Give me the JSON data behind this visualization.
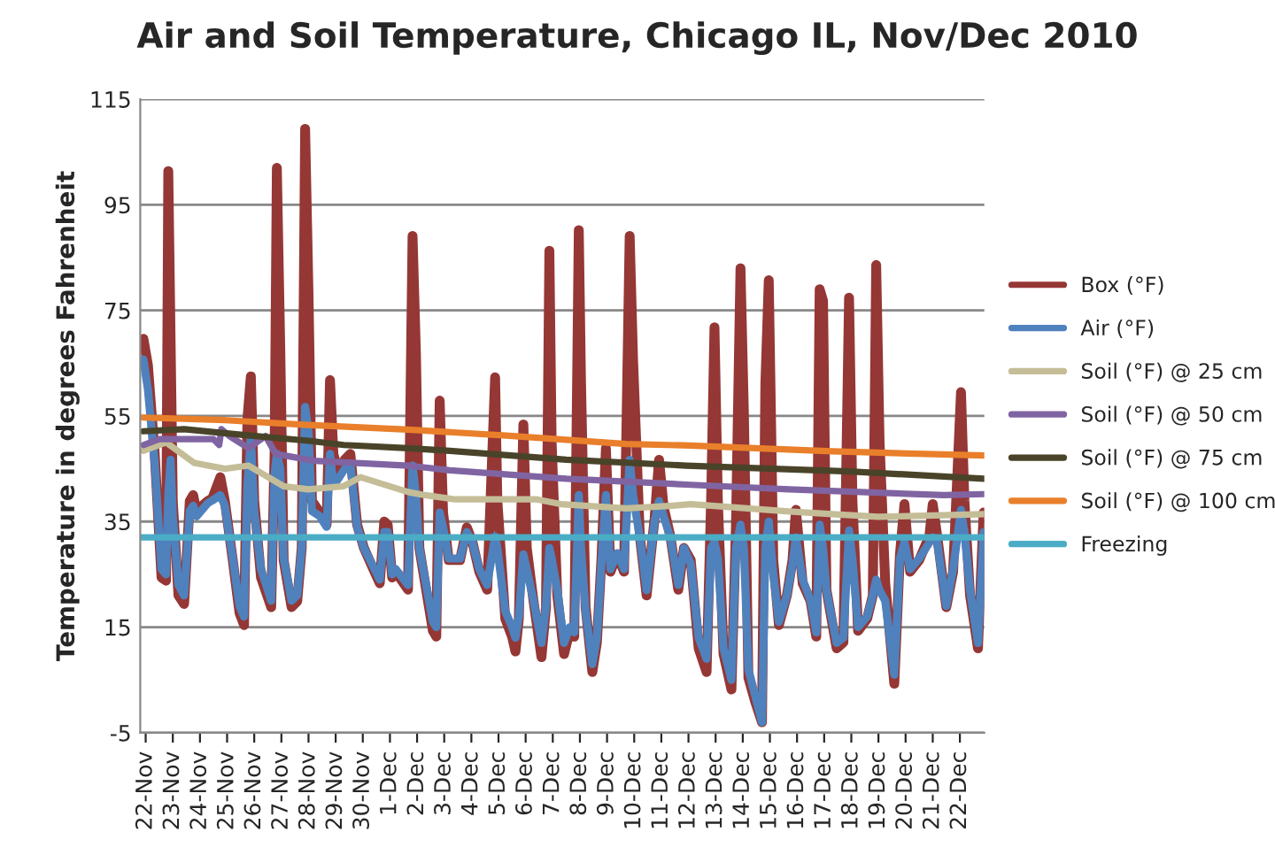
{
  "chart_data": {
    "type": "line",
    "title": "Air and Soil Temperature, Chicago IL, Nov/Dec 2010",
    "ylabel": "Temperature in degrees Fahrenheit",
    "x": [
      "2010-11-21T22:00",
      "2010-11-22T02:00",
      "2010-11-22T08:00",
      "2010-11-22T14:00",
      "2010-11-22T18:00",
      "2010-11-22T20:00",
      "2010-11-22T22:00",
      "2010-11-23T00:00",
      "2010-11-23T05:00",
      "2010-11-23T10:00",
      "2010-11-23T15:00",
      "2010-11-23T18:00",
      "2010-11-23T21:00",
      "2010-11-24T01:00",
      "2010-11-24T07:00",
      "2010-11-24T11:00",
      "2010-11-24T18:00",
      "2010-11-24T22:00",
      "2010-11-25T05:00",
      "2010-11-25T11:00",
      "2010-11-25T15:00",
      "2010-11-25T18:00",
      "2010-11-25T21:00",
      "2010-11-26T00:00",
      "2010-11-26T06:00",
      "2010-11-26T15:00",
      "2010-11-26T18:00",
      "2010-11-26T20:00",
      "2010-11-26T23:00",
      "2010-11-27T02:00",
      "2010-11-27T09:00",
      "2010-11-27T14:00",
      "2010-11-27T18:00",
      "2010-11-27T21:00",
      "2010-11-28T00:00",
      "2010-11-28T03:00",
      "2010-11-28T10:00",
      "2010-11-28T16:00",
      "2010-11-28T19:00",
      "2010-11-28T22:00",
      "2010-11-29T02:00",
      "2010-11-29T08:00",
      "2010-11-29T13:00",
      "2010-11-29T19:00",
      "2010-11-30T01:00",
      "2010-11-30T08:00",
      "2010-11-30T15:00",
      "2010-11-30T19:00",
      "2010-11-30T22:00",
      "2010-12-01T02:00",
      "2010-12-01T05:00",
      "2010-12-01T16:00",
      "2010-12-01T20:00",
      "2010-12-01T23:00",
      "2010-12-02T02:00",
      "2010-12-02T08:00",
      "2010-12-02T14:00",
      "2010-12-02T17:00",
      "2010-12-02T20:00",
      "2010-12-02T23:00",
      "2010-12-03T04:00",
      "2010-12-03T14:00",
      "2010-12-03T20:00",
      "2010-12-04T01:00",
      "2010-12-04T07:00",
      "2010-12-04T14:00",
      "2010-12-04T21:00",
      "2010-12-04T23:00",
      "2010-12-05T06:00",
      "2010-12-05T12:00",
      "2010-12-05T15:00",
      "2010-12-05T18:00",
      "2010-12-05T22:00",
      "2010-12-06T01:00",
      "2010-12-06T07:00",
      "2010-12-06T14:00",
      "2010-12-06T18:00",
      "2010-12-06T21:00",
      "2010-12-06T23:00",
      "2010-12-07T04:00",
      "2010-12-07T10:00",
      "2010-12-07T15:00",
      "2010-12-07T19:00",
      "2010-12-07T23:00",
      "2010-12-08T01:00",
      "2010-12-08T05:00",
      "2010-12-08T11:00",
      "2010-12-08T15:00",
      "2010-12-08T19:00",
      "2010-12-08T23:00",
      "2010-12-09T03:00",
      "2010-12-09T09:00",
      "2010-12-09T15:00",
      "2010-12-09T20:00",
      "2010-12-09T23:00",
      "2010-12-10T05:00",
      "2010-12-10T11:00",
      "2010-12-10T18:00",
      "2010-12-10T22:00",
      "2010-12-11T02:00",
      "2010-12-11T08:00",
      "2010-12-11T15:00",
      "2010-12-11T20:00",
      "2010-12-12T02:00",
      "2010-12-12T09:00",
      "2010-12-12T16:00",
      "2010-12-12T20:00",
      "2010-12-12T23:00",
      "2010-12-13T02:00",
      "2010-12-13T07:00",
      "2010-12-13T14:00",
      "2010-12-13T18:00",
      "2010-12-13T22:00",
      "2010-12-14T01:00",
      "2010-12-14T05:00",
      "2010-12-14T11:00",
      "2010-12-14T17:00",
      "2010-12-14T20:00",
      "2010-12-14T23:00",
      "2010-12-15T03:00",
      "2010-12-15T08:00",
      "2010-12-15T15:00",
      "2010-12-15T20:00",
      "2010-12-15T23:00",
      "2010-12-16T05:00",
      "2010-12-16T12:00",
      "2010-12-16T17:00",
      "2010-12-16T20:00",
      "2010-12-16T23:00",
      "2010-12-17T02:00",
      "2010-12-17T11:00",
      "2010-12-17T17:00",
      "2010-12-17T22:00",
      "2010-12-18T01:00",
      "2010-12-18T06:00",
      "2010-12-18T14:00",
      "2010-12-18T19:00",
      "2010-12-18T22:00",
      "2010-12-19T01:00",
      "2010-12-19T06:00",
      "2010-12-19T14:00",
      "2010-12-19T19:00",
      "2010-12-19T23:00",
      "2010-12-20T04:00",
      "2010-12-20T12:00",
      "2010-12-20T21:00",
      "2010-12-21T00:00",
      "2010-12-21T04:00",
      "2010-12-21T12:00",
      "2010-12-21T18:00",
      "2010-12-22T01:00",
      "2010-12-22T04:00",
      "2010-12-22T09:00",
      "2010-12-22T16:00",
      "2010-12-22T21:00"
    ],
    "series": [
      {
        "name": "Box (°F)",
        "color": "#953735",
        "values": [
          69.6,
          64.6,
          47.8,
          24.4,
          23.8,
          101.4,
          70,
          38.7,
          21,
          19.4,
          38.9,
          40,
          36.7,
          37.8,
          38.9,
          39.4,
          43.4,
          38.9,
          27.7,
          17.7,
          15.4,
          54.5,
          62.5,
          38.9,
          24.4,
          18.8,
          47.8,
          102,
          68,
          27.7,
          18.8,
          19.9,
          30,
          109.4,
          78,
          38.9,
          36.7,
          34.4,
          61.8,
          47.8,
          44.5,
          46.7,
          47.8,
          34.4,
          30,
          26.6,
          23.3,
          35,
          34.4,
          24.4,
          25.5,
          22.1,
          89.1,
          66.8,
          30,
          22.1,
          14.3,
          13.2,
          57.9,
          36.7,
          27.7,
          27.7,
          33.9,
          31.1,
          25.5,
          22.1,
          62.3,
          38.9,
          16.6,
          13.2,
          10.4,
          16.6,
          53.4,
          30,
          19.9,
          9.3,
          18.8,
          86.3,
          50,
          21,
          9.9,
          14.3,
          13.2,
          90.2,
          61.2,
          18.8,
          6.5,
          12.1,
          27.7,
          48.9,
          25.5,
          28.8,
          25.5,
          89.1,
          65.7,
          32.2,
          21,
          35.5,
          46.7,
          37.8,
          32.2,
          22.1,
          30,
          27.7,
          11,
          6.5,
          38.9,
          71.8,
          38.9,
          9.9,
          3.2,
          34.4,
          83,
          55.6,
          5.4,
          0.9,
          -3,
          61.2,
          80.7,
          27.7,
          15.4,
          21,
          27.7,
          37.2,
          23.3,
          19.9,
          13.2,
          79,
          76.8,
          22.1,
          11,
          12.1,
          77.4,
          38.9,
          14.3,
          16.6,
          21,
          83.6,
          50,
          23.3,
          4.3,
          28.8,
          38.3,
          25.5,
          27.7,
          32.2,
          38.3,
          32.2,
          18.8,
          25.5,
          59.5,
          38.9,
          21,
          11,
          36.7
        ]
      },
      {
        "name": "Air (°F)",
        "color": "#4f81bd",
        "values": [
          65.7,
          60,
          46,
          26,
          25,
          40,
          46.7,
          36,
          23,
          21,
          37,
          38,
          36,
          37,
          38.5,
          39,
          40,
          38,
          28,
          19,
          17,
          42,
          51,
          37,
          26,
          20,
          44,
          47.8,
          45,
          28,
          20,
          21,
          30,
          56.7,
          52,
          37,
          36,
          34,
          47.8,
          42,
          43,
          45,
          46,
          34,
          30,
          27,
          24,
          33,
          33,
          25,
          26,
          23,
          45.6,
          40,
          30,
          23,
          16,
          15,
          36.7,
          34,
          28,
          28,
          33,
          31,
          26,
          23,
          32.2,
          30,
          18,
          15,
          13,
          17,
          28.8,
          26,
          20,
          12,
          19,
          30,
          28,
          22,
          12,
          15,
          14,
          40,
          30,
          18,
          8,
          13,
          27,
          40,
          26,
          29,
          26,
          46.7,
          40,
          32,
          22,
          35,
          38.9,
          36,
          32,
          23,
          30,
          27,
          13,
          9,
          30,
          31.1,
          28,
          11,
          5,
          30,
          34.4,
          30,
          7,
          2,
          -3,
          30,
          35,
          25,
          16,
          21,
          27,
          32,
          24,
          20,
          14,
          34.4,
          30,
          22,
          12,
          13,
          33.3,
          28,
          15,
          17,
          21,
          24,
          22,
          20,
          6,
          28,
          31.1,
          26,
          28,
          31,
          32,
          31,
          19,
          26,
          37.2,
          33,
          22,
          12,
          33
        ]
      },
      {
        "name": "Soil (°F) @ 25 cm",
        "color": "#c4bd97",
        "x": [
          "2010-11-21T22:00",
          "2010-11-22T18:00",
          "2010-11-23T19:00",
          "2010-11-24T22:00",
          "2010-11-25T19:00",
          "2010-11-27T02:00",
          "2010-11-28T00:00",
          "2010-11-29T07:00",
          "2010-11-29T22:00",
          "2010-12-01T16:00",
          "2010-12-02T07:00",
          "2010-12-03T10:00",
          "2010-12-06T10:00",
          "2010-12-07T07:00",
          "2010-12-09T17:00",
          "2010-12-11T10:00",
          "2010-12-12T02:00",
          "2010-12-15T17:00",
          "2010-12-17T07:00",
          "2010-12-19T00:00",
          "2010-12-22T21:30"
        ],
        "values": [
          48.4,
          50,
          46.1,
          45,
          45.6,
          41.7,
          41.1,
          41.7,
          43.4,
          40.6,
          40,
          39.2,
          39.2,
          38.3,
          37.5,
          38,
          38.3,
          36.9,
          36.4,
          35.9,
          36.4
        ]
      },
      {
        "name": "Soil (°F) @ 50 cm",
        "color": "#8064a2",
        "x": [
          "2010-11-21T22:00",
          "2010-11-22T12:00",
          "2010-11-24T12:00",
          "2010-11-24T17:00",
          "2010-11-24T19:00",
          "2010-11-25T02:00",
          "2010-11-25T19:00",
          "2010-11-26T10:00",
          "2010-11-26T19:00",
          "2010-11-28T05:00",
          "2010-12-01T16:00",
          "2010-12-03T05:00",
          "2010-12-07T12:00",
          "2010-12-11T22:00",
          "2010-12-15T17:00",
          "2010-12-21T10:00",
          "2010-12-22T21:30"
        ],
        "values": [
          49.5,
          50.6,
          50.6,
          49.5,
          52.5,
          51.2,
          48.9,
          51.2,
          47.8,
          46.5,
          45.6,
          44.7,
          43.1,
          42,
          41.1,
          40,
          40.2
        ]
      },
      {
        "name": "Soil (°F) @ 75 cm",
        "color": "#494429",
        "x": [
          "2010-11-21T22:00",
          "2010-11-23T10:00",
          "2010-11-25T14:00",
          "2010-11-28T00:00",
          "2010-11-29T07:00",
          "2010-12-01T16:00",
          "2010-12-03T05:00",
          "2010-12-07T12:00",
          "2010-12-11T22:00",
          "2010-12-17T22:00",
          "2010-12-22T21:30"
        ],
        "values": [
          52.1,
          52.5,
          51.4,
          50.3,
          49.5,
          48.9,
          48.4,
          46.7,
          45.6,
          44.5,
          43.1
        ]
      },
      {
        "name": "Soil (°F) @ 100 cm",
        "color": "#e97f2a",
        "x": [
          "2010-11-21T22:00",
          "2010-11-24T22:00",
          "2010-11-28T00:00",
          "2010-12-01T16:00",
          "2010-12-05T07:00",
          "2010-12-09T17:00",
          "2010-12-12T01:00",
          "2010-12-17T07:00",
          "2010-12-22T21:30"
        ],
        "values": [
          54.7,
          54.2,
          53.3,
          52.4,
          51.3,
          49.7,
          49.4,
          48.3,
          47.5
        ]
      },
      {
        "name": "Freezing",
        "color": "#4bacc6",
        "x": [
          "2010-11-21T19:12",
          "2010-12-22T21:36"
        ],
        "values": [
          32,
          32
        ]
      }
    ],
    "xlim": [
      "2010-11-21T19:12",
      "2010-12-22T21:36"
    ],
    "xticks": [
      {
        "value": "2010-11-22",
        "label": "22-Nov"
      },
      {
        "value": "2010-11-23",
        "label": "23-Nov"
      },
      {
        "value": "2010-11-24",
        "label": "24-Nov"
      },
      {
        "value": "2010-11-25",
        "label": "25-Nov"
      },
      {
        "value": "2010-11-26",
        "label": "26-Nov"
      },
      {
        "value": "2010-11-27",
        "label": "27-Nov"
      },
      {
        "value": "2010-11-28",
        "label": "28-Nov"
      },
      {
        "value": "2010-11-29",
        "label": "29-Nov"
      },
      {
        "value": "2010-11-30",
        "label": "30-Nov"
      },
      {
        "value": "2010-12-01",
        "label": "1-Dec"
      },
      {
        "value": "2010-12-02",
        "label": "2-Dec"
      },
      {
        "value": "2010-12-03",
        "label": "3-Dec"
      },
      {
        "value": "2010-12-04",
        "label": "4-Dec"
      },
      {
        "value": "2010-12-05",
        "label": "5-Dec"
      },
      {
        "value": "2010-12-06",
        "label": "6-Dec"
      },
      {
        "value": "2010-12-07",
        "label": "7-Dec"
      },
      {
        "value": "2010-12-08",
        "label": "8-Dec"
      },
      {
        "value": "2010-12-09",
        "label": "9-Dec"
      },
      {
        "value": "2010-12-10",
        "label": "10-Dec"
      },
      {
        "value": "2010-12-11",
        "label": "11-Dec"
      },
      {
        "value": "2010-12-12",
        "label": "12-Dec"
      },
      {
        "value": "2010-12-13",
        "label": "13-Dec"
      },
      {
        "value": "2010-12-14",
        "label": "14-Dec"
      },
      {
        "value": "2010-12-15",
        "label": "15-Dec"
      },
      {
        "value": "2010-12-16",
        "label": "16-Dec"
      },
      {
        "value": "2010-12-17",
        "label": "17-Dec"
      },
      {
        "value": "2010-12-18",
        "label": "18-Dec"
      },
      {
        "value": "2010-12-19",
        "label": "19-Dec"
      },
      {
        "value": "2010-12-20",
        "label": "20-Dec"
      },
      {
        "value": "2010-12-21",
        "label": "21-Dec"
      },
      {
        "value": "2010-12-22",
        "label": "22-Dec"
      }
    ],
    "ylim": [
      -5,
      115
    ],
    "yticks": [
      -5,
      15,
      35,
      55,
      75,
      95,
      115
    ],
    "grid": "y",
    "legend": "right",
    "line_style": "solid",
    "marker": "none"
  }
}
